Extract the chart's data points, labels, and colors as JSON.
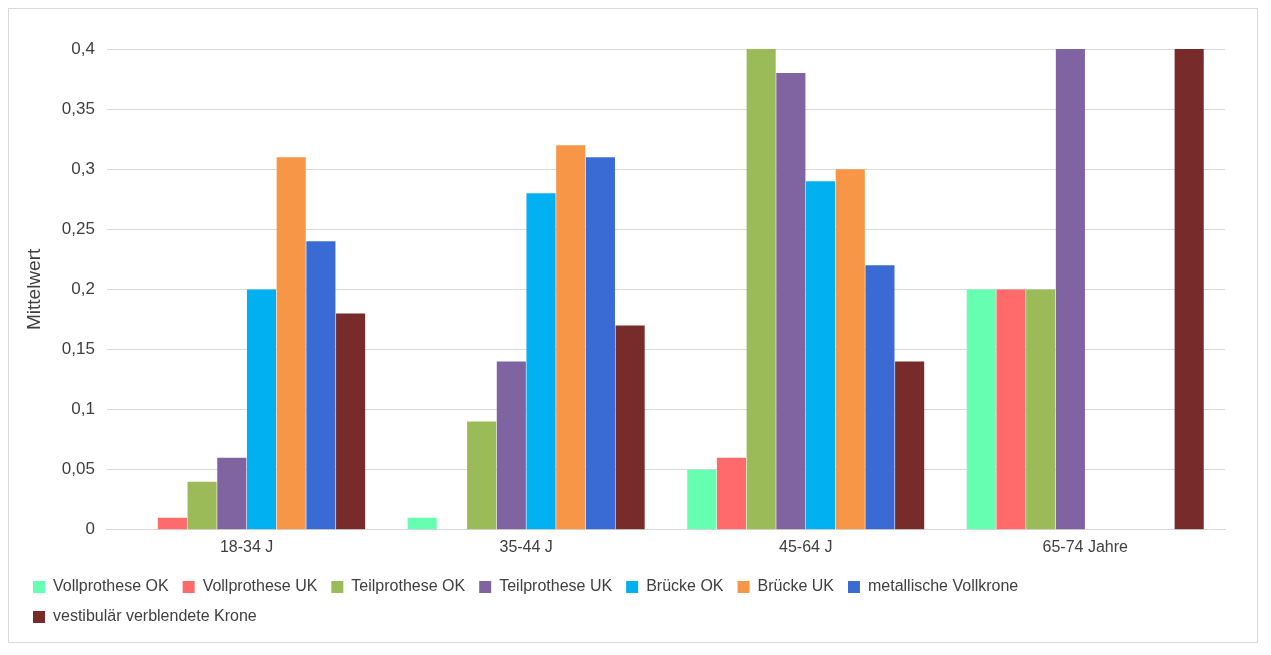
{
  "chart_data": {
    "type": "bar",
    "ylabel": "Mittelwert",
    "categories": [
      "18-34 J",
      "35-44 J",
      "45-64 J",
      "65-74 Jahre"
    ],
    "series": [
      {
        "name": "Vollprothese OK",
        "color": "#66ffb2",
        "values": [
          0,
          0.01,
          0.05,
          0.2
        ]
      },
      {
        "name": "Vollprothese UK",
        "color": "#ff6b6b",
        "values": [
          0.01,
          0,
          0.06,
          0.2
        ]
      },
      {
        "name": "Teilprothese OK",
        "color": "#9bbb59",
        "values": [
          0.04,
          0.09,
          0.4,
          0.2
        ]
      },
      {
        "name": "Teilprothese UK",
        "color": "#8064a2",
        "values": [
          0.06,
          0.14,
          0.38,
          0.4
        ]
      },
      {
        "name": "Brücke OK",
        "color": "#00b0f0",
        "values": [
          0.2,
          0.28,
          0.29,
          0
        ]
      },
      {
        "name": "Brücke UK",
        "color": "#f79646",
        "values": [
          0.31,
          0.32,
          0.3,
          0
        ]
      },
      {
        "name": "metallische Vollkrone",
        "color": "#3a6bd4",
        "values": [
          0.24,
          0.31,
          0.22,
          0
        ]
      },
      {
        "name": "vestibulär verblendete Krone",
        "color": "#772b2b",
        "values": [
          0.18,
          0.17,
          0.14,
          0.4
        ]
      }
    ],
    "ylim": [
      0,
      0.4
    ],
    "yticks": [
      0,
      {
        "value": 0.05,
        "label": "0,05"
      },
      {
        "value": 0.1,
        "label": "0,1"
      },
      {
        "value": 0.15,
        "label": "0,15"
      },
      {
        "value": 0.2,
        "label": "0,2"
      },
      {
        "value": 0.25,
        "label": "0,25"
      },
      {
        "value": 0.3,
        "label": "0,3"
      },
      {
        "value": 0.35,
        "label": "0,35"
      },
      {
        "value": 0.4,
        "label": "0,4"
      }
    ],
    "grid": "y",
    "legend": "bottom"
  }
}
